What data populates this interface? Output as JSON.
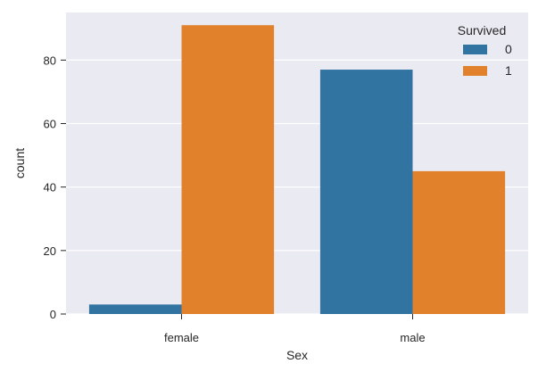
{
  "chart_data": {
    "type": "bar",
    "categories": [
      "female",
      "male"
    ],
    "series": [
      {
        "name": "0",
        "values": [
          3,
          77
        ],
        "color": "#3274a1"
      },
      {
        "name": "1",
        "values": [
          91,
          45
        ],
        "color": "#e1812c"
      }
    ],
    "title": "",
    "xlabel": "Sex",
    "ylabel": "count",
    "ylim": [
      0,
      95
    ],
    "yticks": [
      0,
      20,
      40,
      60,
      80
    ],
    "grid": true,
    "legend": {
      "title": "Survived",
      "position": "top-right"
    },
    "background": "#eaeaf2",
    "gridColor": "#ffffff"
  }
}
